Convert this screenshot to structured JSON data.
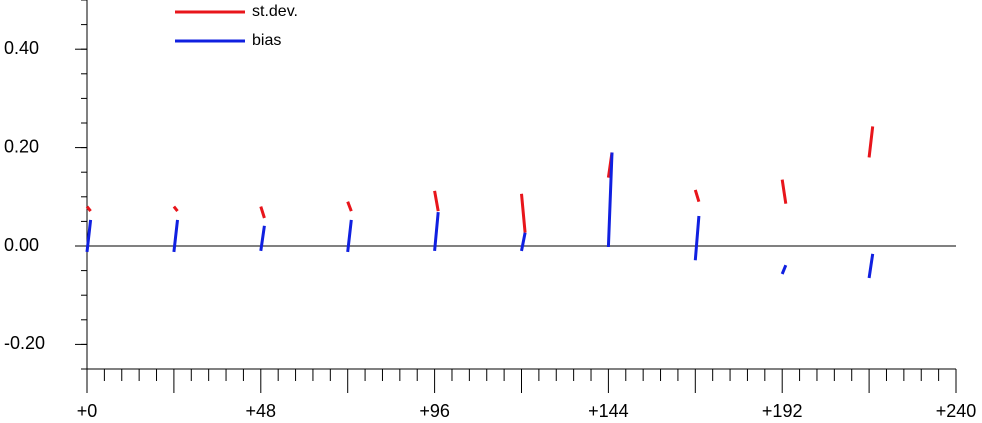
{
  "chart_data": {
    "type": "line",
    "legend": "upper left",
    "x": [
      0,
      1,
      null,
      24,
      25,
      null,
      48,
      49,
      null,
      72,
      73,
      null,
      96,
      97,
      null,
      120,
      121,
      null,
      144,
      145,
      null,
      168,
      169,
      null,
      192,
      193,
      null,
      216,
      217
    ],
    "series": [
      {
        "name": "st.dev.",
        "color": "#e8151b",
        "values": [
          0.08,
          0.071,
          null,
          0.08,
          0.071,
          null,
          0.08,
          0.057,
          null,
          0.09,
          0.071,
          null,
          0.112,
          0.071,
          null,
          0.106,
          0.027,
          null,
          0.139,
          0.19,
          null,
          0.114,
          0.09,
          null,
          0.135,
          0.086,
          null,
          0.18,
          0.243
        ]
      },
      {
        "name": "bias",
        "color": "#1020e0",
        "values": [
          -0.012,
          0.053,
          null,
          -0.012,
          0.053,
          null,
          -0.01,
          0.041,
          null,
          -0.012,
          0.053,
          null,
          -0.01,
          0.069,
          null,
          -0.01,
          0.027,
          null,
          -0.002,
          0.19,
          null,
          -0.029,
          0.061,
          null,
          -0.057,
          -0.039,
          null,
          -0.065,
          -0.016
        ]
      }
    ],
    "xlim": [
      0,
      240
    ],
    "xticks": [
      {
        "value": 0,
        "label": "+0"
      },
      {
        "value": 48,
        "label": "+48"
      },
      {
        "value": 96,
        "label": "+96"
      },
      {
        "value": 144,
        "label": "+144"
      },
      {
        "value": 192,
        "label": "+192"
      },
      {
        "value": 240,
        "label": "+240"
      }
    ],
    "ylim": [
      -0.25,
      0.5
    ],
    "yticks": [
      {
        "value": 0.4,
        "label": "0.40"
      },
      {
        "value": 0.2,
        "label": "0.20"
      },
      {
        "value": 0,
        "label": "0.00"
      },
      {
        "value": -0.2,
        "label": "-0.20"
      }
    ]
  }
}
